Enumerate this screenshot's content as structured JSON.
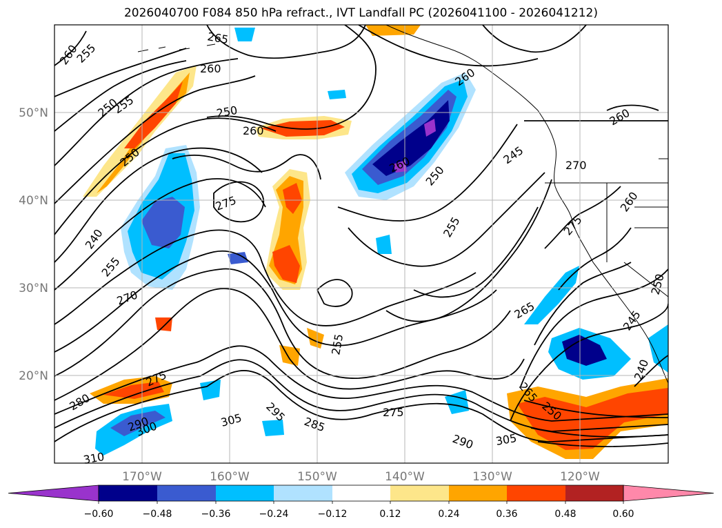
{
  "title": "2026040700 F084 850 hPa refract., IVT Landfall PC (2026041100 - 2026041212)",
  "lat_labels": [
    "50°N",
    "40°N",
    "30°N",
    "20°N"
  ],
  "lon_labels": [
    "170°W",
    "160°W",
    "150°W",
    "140°W",
    "130°W",
    "120°W"
  ],
  "contour_labels": [
    "260",
    "255",
    "265",
    "260",
    "250",
    "255",
    "250",
    "260",
    "250",
    "240",
    "255",
    "270",
    "275",
    "280",
    "290",
    "300",
    "310",
    "275",
    "295",
    "305",
    "285",
    "275",
    "255",
    "265",
    "250",
    "290",
    "305",
    "245",
    "260",
    "250",
    "255",
    "275",
    "265",
    "260",
    "270",
    "240",
    "250",
    "245",
    "260",
    "260"
  ],
  "colorbar": {
    "ticks": [
      "−0.60",
      "−0.48",
      "−0.36",
      "−0.24",
      "−0.12",
      "0.12",
      "0.24",
      "0.36",
      "0.48",
      "0.60"
    ],
    "colors": [
      "#9933cc",
      "#00008b",
      "#3a5bd0",
      "#00bfff",
      "#b0e2ff",
      "#ffffff",
      "#fde68a",
      "#ffa500",
      "#ff4500",
      "#b22222",
      "#ff88aa"
    ]
  }
}
